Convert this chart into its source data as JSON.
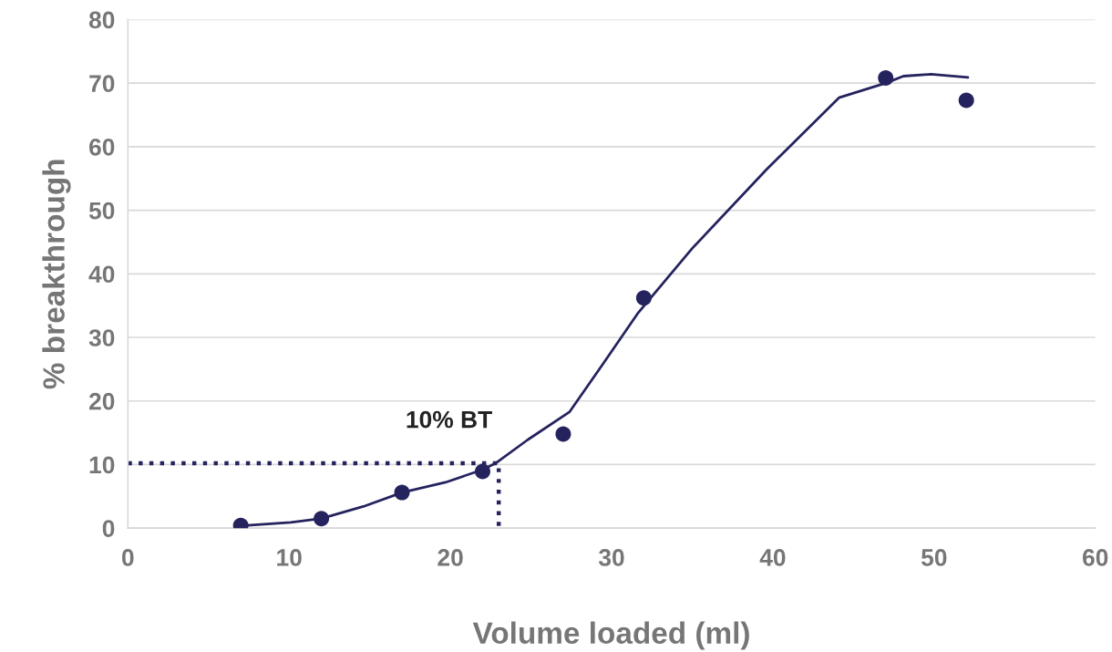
{
  "chart_data": {
    "type": "scatter",
    "xlabel": "Volume loaded (ml)",
    "ylabel": "% breakthrough",
    "xlim": [
      0,
      60
    ],
    "xticks": [
      0,
      10,
      20,
      30,
      40,
      50,
      60
    ],
    "ylim": [
      0,
      80
    ],
    "yticks": [
      0,
      10,
      20,
      30,
      40,
      50,
      60,
      70,
      80
    ],
    "grid": "y",
    "series": [
      {
        "color": "#25235e",
        "marker": "circle",
        "x": [
          7.0,
          12.0,
          17.0,
          22.0,
          27.0,
          32.0,
          47.0,
          52.0
        ],
        "values": [
          0.4,
          1.5,
          5.6,
          8.9,
          14.8,
          36.2,
          70.8,
          67.3
        ]
      },
      {
        "type": "line",
        "color": "#25235e",
        "line_style": "solid",
        "x": [
          7.2,
          10.1,
          12.0,
          14.6,
          17.0,
          19.7,
          22.0,
          22.8,
          24.8,
          27.4,
          29.4,
          31.6,
          35.0,
          39.6,
          44.1,
          47.0,
          48.1,
          49.8,
          52.1
        ],
        "values": [
          0.4,
          0.9,
          1.5,
          3.4,
          5.6,
          7.2,
          9.2,
          10.2,
          13.9,
          18.3,
          25.6,
          33.7,
          44.0,
          56.4,
          67.7,
          70.0,
          71.1,
          71.4,
          70.9
        ]
      },
      {
        "type": "line",
        "color": "#25235e",
        "line_style": "dotted",
        "x": [
          0,
          23,
          23
        ],
        "values": [
          10.2,
          10.2,
          0
        ]
      }
    ],
    "annotations": [
      {
        "text": "10% BT",
        "x": 23,
        "y": 10.2
      }
    ]
  }
}
